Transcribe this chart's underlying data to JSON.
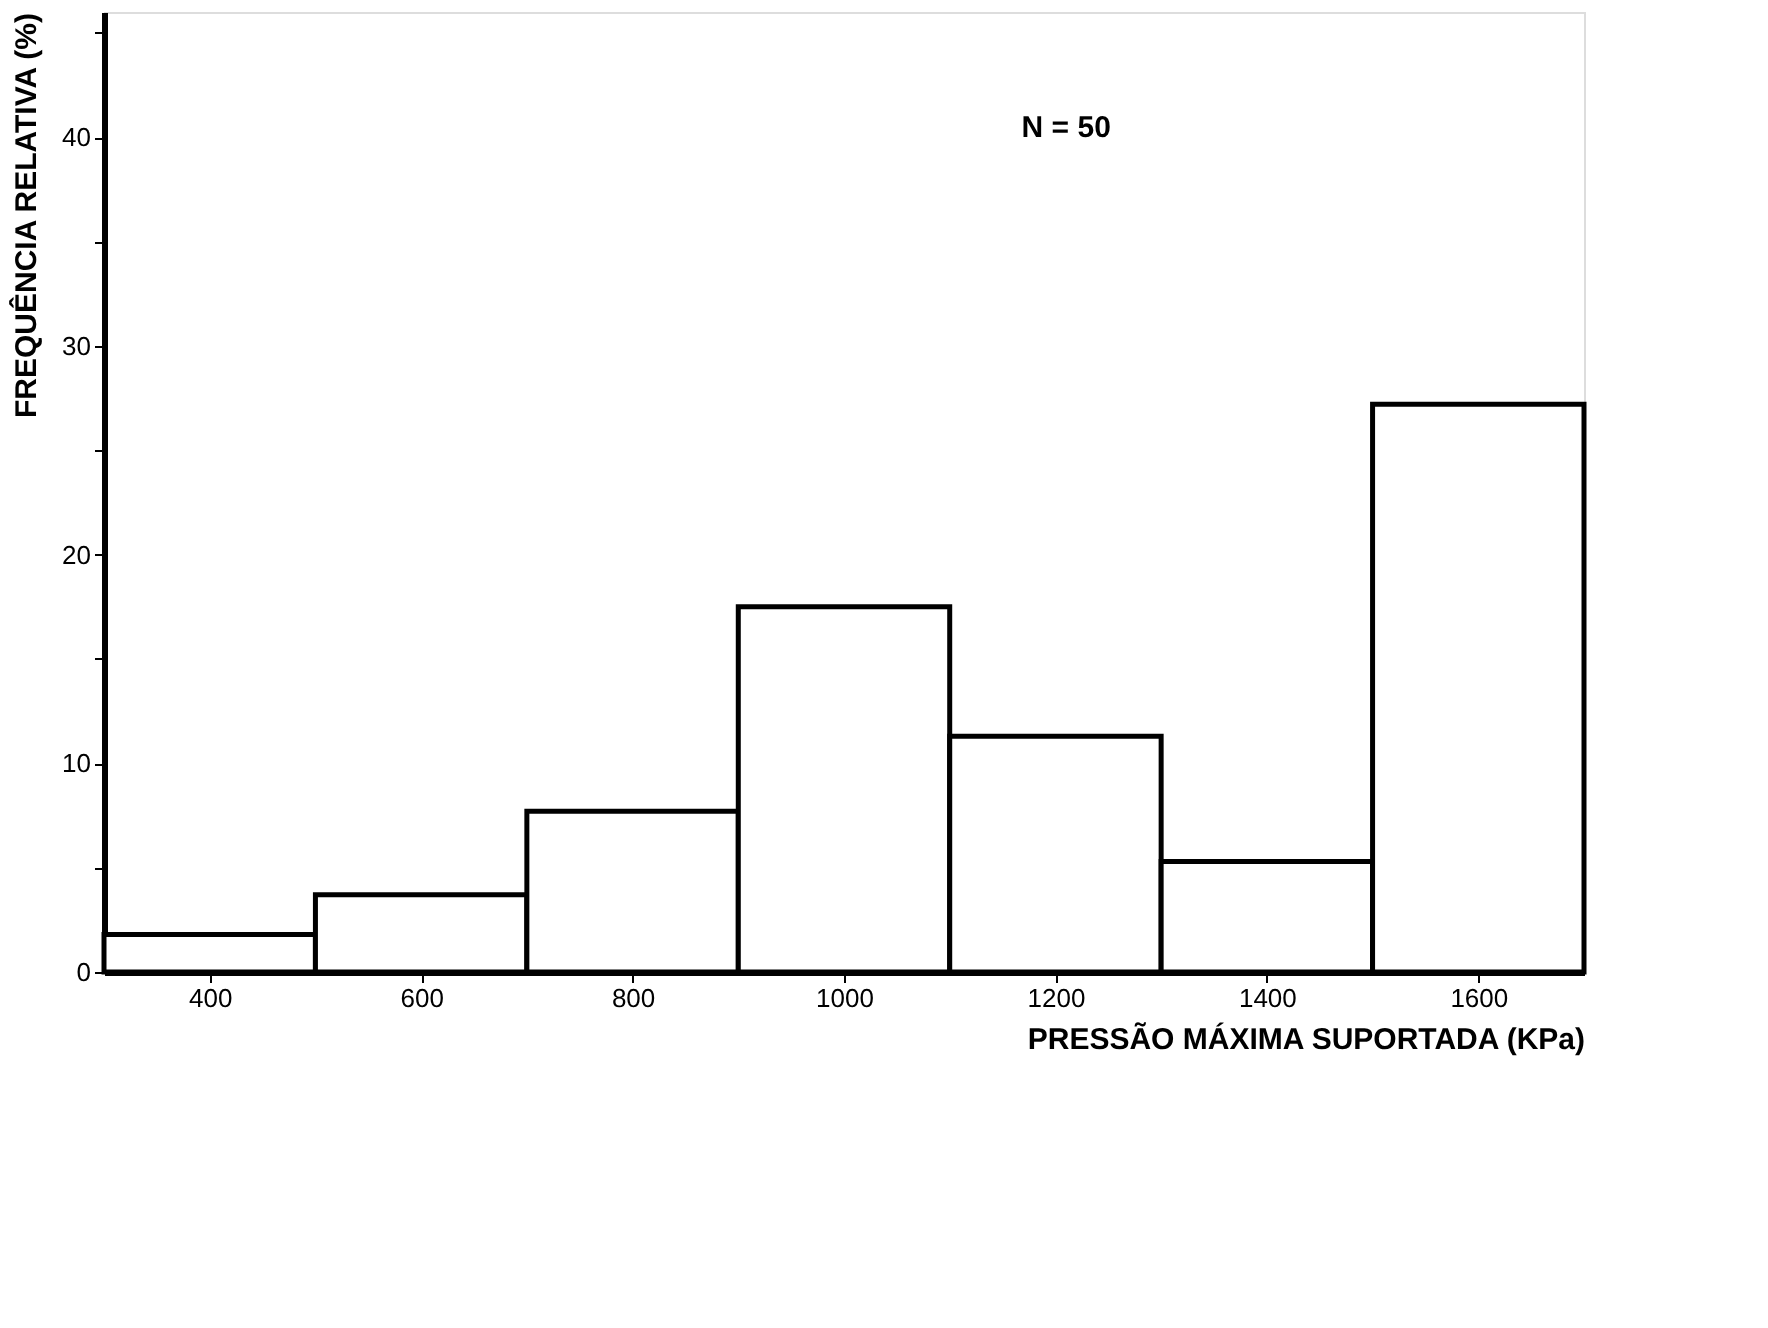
{
  "chart_data": {
    "type": "histogram",
    "xlabel": "PRESSÃO MÁXIMA SUPORTADA (KPa)",
    "ylabel": "FREQUÊNCIA RELATIVA (%)",
    "bins": [
      300,
      500,
      700,
      900,
      1100,
      1300,
      1500,
      1700
    ],
    "values": [
      1.8,
      3.7,
      7.7,
      17.5,
      11.3,
      5.3,
      27.2
    ],
    "color": "#ffffff",
    "xlim": [
      300,
      1700
    ],
    "xticks": [
      400,
      600,
      800,
      1000,
      1200,
      1400,
      1600
    ],
    "ylim": [
      0,
      46
    ],
    "yticks": [
      0,
      {
        "value": 5,
        "label": null
      },
      10,
      {
        "value": 15,
        "label": null
      },
      20,
      {
        "value": 25,
        "label": null
      },
      30,
      {
        "value": 35,
        "label": null
      },
      40,
      {
        "value": 45,
        "label": null
      }
    ],
    "annotations": [
      "N = 50"
    ],
    "grid": false
  }
}
